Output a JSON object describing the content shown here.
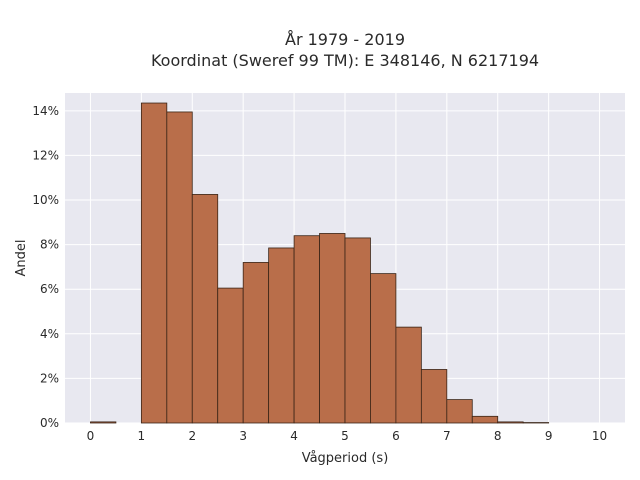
{
  "chart_data": {
    "type": "bar",
    "title_lines": [
      "År 1979 - 2019",
      "Koordinat (Sweref 99 TM): E 348146, N 6217194"
    ],
    "xlabel": "Vågperiod (s)",
    "ylabel": "Andel",
    "xlim": [
      -0.5,
      10.5
    ],
    "ylim": [
      0,
      14.8
    ],
    "x_ticks": [
      0,
      1,
      2,
      3,
      4,
      5,
      6,
      7,
      8,
      9,
      10
    ],
    "y_ticks": [
      0,
      2,
      4,
      6,
      8,
      10,
      12,
      14
    ],
    "y_tick_format": "percent",
    "bin_width": 0.5,
    "bars": [
      {
        "x0": 0.0,
        "value": 0.05
      },
      {
        "x0": 1.0,
        "value": 14.35
      },
      {
        "x0": 1.5,
        "value": 13.95
      },
      {
        "x0": 2.0,
        "value": 10.25
      },
      {
        "x0": 2.5,
        "value": 6.05
      },
      {
        "x0": 3.0,
        "value": 7.2
      },
      {
        "x0": 3.5,
        "value": 7.85
      },
      {
        "x0": 4.0,
        "value": 8.4
      },
      {
        "x0": 4.5,
        "value": 8.5
      },
      {
        "x0": 5.0,
        "value": 8.3
      },
      {
        "x0": 5.5,
        "value": 6.7
      },
      {
        "x0": 6.0,
        "value": 4.3
      },
      {
        "x0": 6.5,
        "value": 2.4
      },
      {
        "x0": 7.0,
        "value": 1.05
      },
      {
        "x0": 7.5,
        "value": 0.3
      },
      {
        "x0": 8.0,
        "value": 0.05
      },
      {
        "x0": 8.5,
        "value": 0.02
      }
    ],
    "bar_color": "#b96e4a",
    "bar_edge_color": "#3a2416",
    "background_color": "#e8e8f0",
    "grid": true,
    "grid_color": "#ffffff"
  }
}
